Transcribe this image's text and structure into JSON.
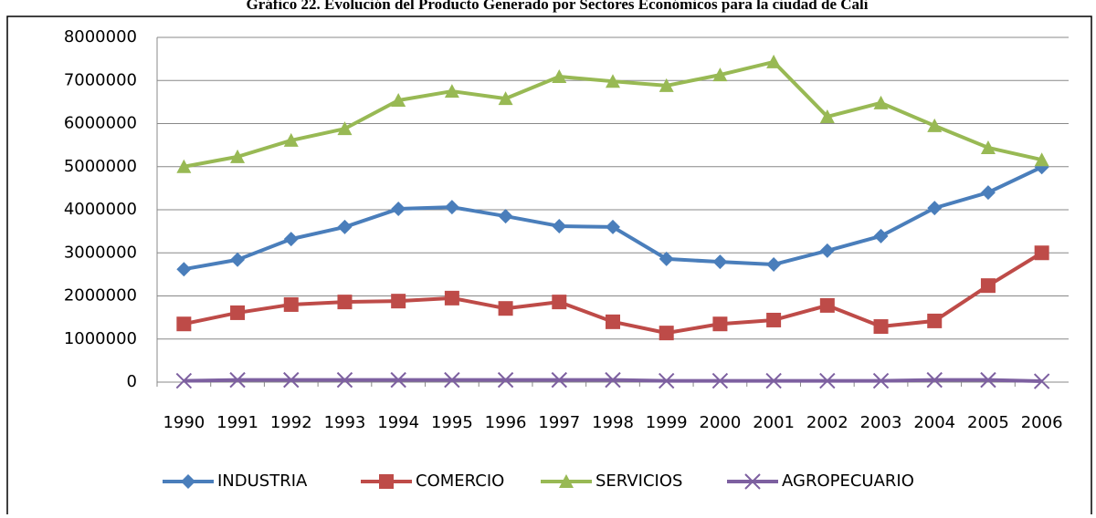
{
  "chart_data": {
    "type": "line",
    "title": "Gráfico 22. Evolución del Producto Generado por Sectores Económicos para la ciudad de Cali",
    "categories": [
      "1990",
      "1991",
      "1992",
      "1993",
      "1994",
      "1995",
      "1996",
      "1997",
      "1998",
      "1999",
      "2000",
      "2001",
      "2002",
      "2003",
      "2004",
      "2005",
      "2006"
    ],
    "series": [
      {
        "name": "INDUSTRIA",
        "color": "#4a7ebb",
        "marker": "diamond",
        "values": [
          2620000,
          2840000,
          3320000,
          3600000,
          4020000,
          4060000,
          3850000,
          3620000,
          3600000,
          2860000,
          2790000,
          2730000,
          3050000,
          3390000,
          4040000,
          4400000,
          4990000
        ]
      },
      {
        "name": "COMERCIO",
        "color": "#be4b48",
        "marker": "square",
        "values": [
          1350000,
          1610000,
          1800000,
          1860000,
          1880000,
          1950000,
          1710000,
          1860000,
          1400000,
          1140000,
          1350000,
          1440000,
          1780000,
          1290000,
          1420000,
          2240000,
          3000000
        ]
      },
      {
        "name": "SERVICIOS",
        "color": "#98b954",
        "marker": "triangle",
        "values": [
          5000000,
          5230000,
          5610000,
          5880000,
          6540000,
          6750000,
          6580000,
          7090000,
          6980000,
          6880000,
          7130000,
          7430000,
          6160000,
          6480000,
          5950000,
          5440000,
          5160000
        ]
      },
      {
        "name": "AGROPECUARIO",
        "color": "#7d60a0",
        "marker": "x",
        "values": [
          30000,
          50000,
          50000,
          50000,
          50000,
          50000,
          50000,
          50000,
          50000,
          30000,
          30000,
          30000,
          30000,
          30000,
          50000,
          50000,
          20000
        ]
      }
    ],
    "ylim": [
      0,
      8000000
    ],
    "yticks": [
      0,
      1000000,
      2000000,
      3000000,
      4000000,
      5000000,
      6000000,
      7000000,
      8000000
    ],
    "grid": true,
    "legend": "bottom"
  }
}
